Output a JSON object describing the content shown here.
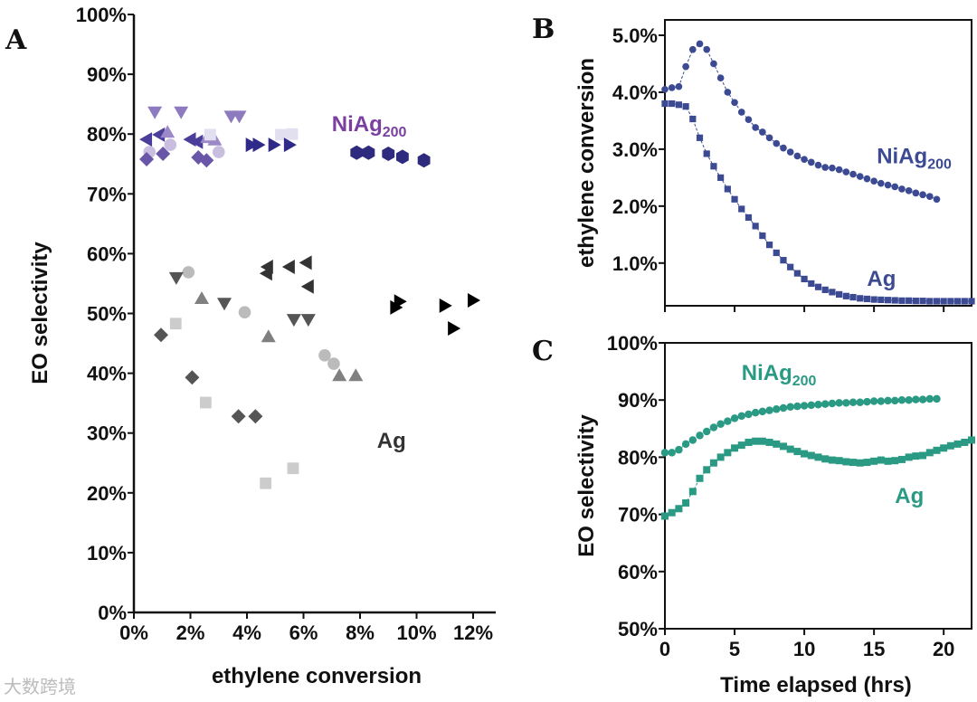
{
  "watermark": "大数跨境",
  "chart_data": [
    {
      "panel": "A",
      "type": "scatter",
      "xlabel": "ethylene conversion",
      "ylabel": "EO selectivity",
      "xlim": [
        0,
        12.8
      ],
      "ylim": [
        0,
        100
      ],
      "xticks": [
        0,
        2,
        4,
        6,
        8,
        10,
        12
      ],
      "xtick_labels": [
        "0%",
        "2%",
        "4%",
        "6%",
        "8%",
        "10%",
        "12%"
      ],
      "yticks": [
        0,
        10,
        20,
        30,
        40,
        50,
        60,
        70,
        80,
        90,
        100
      ],
      "ytick_labels": [
        "0%",
        "10%",
        "20%",
        "30%",
        "40%",
        "50%",
        "60%",
        "70%",
        "80%",
        "90%",
        "100%"
      ],
      "annotations": [
        {
          "text": "NiAg",
          "sub": "200",
          "x": 7.0,
          "y": 80.5,
          "color": "#7b3fa0"
        },
        {
          "text": "Ag",
          "x": 8.6,
          "y": 27.5,
          "color": "#333333"
        }
      ],
      "series": [
        {
          "name": "NiAg down-triangle",
          "group": "NiAg200",
          "marker": "tri-down",
          "color": "#8e7bbf",
          "x": [
            0.74,
            1.67,
            3.44,
            3.73
          ],
          "y": [
            83.7,
            83.7,
            83.0,
            83.0
          ]
        },
        {
          "name": "NiAg left-triangle",
          "group": "NiAg200",
          "marker": "tri-left",
          "color": "#4b3e9a",
          "x": [
            0.45,
            0.9,
            2.0,
            2.25
          ],
          "y": [
            79.1,
            79.9,
            79.1,
            78.7
          ]
        },
        {
          "name": "NiAg up-triangle",
          "group": "NiAg200",
          "marker": "tri-up",
          "color": "#9a88c8",
          "x": [
            1.19,
            2.6,
            2.86
          ],
          "y": [
            80.3,
            79.4,
            79.0
          ]
        },
        {
          "name": "NiAg circle",
          "group": "NiAg200",
          "marker": "circle",
          "color": "#c9bde0",
          "x": [
            0.55,
            1.29,
            3.0
          ],
          "y": [
            77.0,
            78.2,
            77.0
          ]
        },
        {
          "name": "NiAg square",
          "group": "NiAg200",
          "marker": "square",
          "color": "#e2dff0",
          "x": [
            2.7,
            5.2,
            5.6
          ],
          "y": [
            79.9,
            79.9,
            80.0
          ]
        },
        {
          "name": "NiAg right-triangle",
          "group": "NiAg200",
          "marker": "tri-right",
          "color": "#2f2a8a",
          "x": [
            4.15,
            4.4,
            4.95,
            5.5
          ],
          "y": [
            78.2,
            78.2,
            78.2,
            78.2
          ]
        },
        {
          "name": "NiAg diamond",
          "group": "NiAg200",
          "marker": "diamond",
          "color": "#6a56a8",
          "x": [
            0.45,
            1.03,
            2.28,
            2.57
          ],
          "y": [
            75.8,
            76.7,
            76.1,
            75.6
          ]
        },
        {
          "name": "NiAg hexagon",
          "group": "NiAg200",
          "marker": "hexagon",
          "color": "#2e2a7e",
          "x": [
            7.88,
            8.3,
            9.0,
            9.5,
            10.26
          ],
          "y": [
            76.9,
            76.9,
            76.7,
            76.2,
            75.6
          ]
        },
        {
          "name": "Ag diamond",
          "group": "Ag",
          "marker": "diamond",
          "color": "#555555",
          "x": [
            0.96,
            2.06,
            3.7,
            4.3
          ],
          "y": [
            46.4,
            39.3,
            32.8,
            32.8
          ]
        },
        {
          "name": "Ag square",
          "group": "Ag",
          "marker": "square",
          "color": "#cccccc",
          "x": [
            1.48,
            2.54,
            4.66,
            5.63
          ],
          "y": [
            48.3,
            35.1,
            21.6,
            24.1
          ]
        },
        {
          "name": "Ag circle",
          "group": "Ag",
          "marker": "circle",
          "color": "#bbbbbb",
          "x": [
            1.93,
            3.92,
            6.75,
            7.07
          ],
          "y": [
            56.9,
            50.2,
            43.0,
            41.6
          ]
        },
        {
          "name": "Ag down-triangle",
          "group": "Ag",
          "marker": "tri-down",
          "color": "#555555",
          "x": [
            1.5,
            3.2,
            5.66,
            6.17
          ],
          "y": [
            56.0,
            51.7,
            49.0,
            49.0
          ]
        },
        {
          "name": "Ag up-triangle",
          "group": "Ag",
          "marker": "tri-up",
          "color": "#808080",
          "x": [
            2.4,
            4.76,
            7.27,
            7.85
          ],
          "y": [
            52.5,
            46.1,
            39.6,
            39.6
          ]
        },
        {
          "name": "Ag left-triangle",
          "group": "Ag",
          "marker": "tri-left",
          "color": "#333333",
          "x": [
            4.73,
            4.7,
            5.5,
            6.1,
            6.17
          ],
          "y": [
            57.8,
            56.7,
            57.8,
            58.5,
            54.5
          ]
        },
        {
          "name": "Ag right-triangle",
          "group": "Ag",
          "marker": "tri-right",
          "color": "#000000",
          "x": [
            9.4,
            9.26,
            11.0,
            12.0,
            11.3
          ],
          "y": [
            52.0,
            51.0,
            51.3,
            52.2,
            47.5
          ]
        }
      ]
    },
    {
      "panel": "B",
      "type": "line",
      "xlabel": "",
      "ylabel": "ethylene conversion",
      "xlim": [
        0,
        22
      ],
      "ylim": [
        0.25,
        5.27
      ],
      "xticks": [
        0,
        5,
        10,
        15,
        20
      ],
      "yticks": [
        1,
        2,
        3,
        4,
        5
      ],
      "ytick_labels": [
        "1.0%",
        "2.0%",
        "3.0%",
        "4.0%",
        "5.0%"
      ],
      "annotations": [
        {
          "text": "NiAg",
          "sub": "200",
          "x": 15.2,
          "y": 2.75,
          "color": "#3b4a92"
        },
        {
          "text": "Ag",
          "x": 14.5,
          "y": 0.6,
          "color": "#3b4a92"
        }
      ],
      "series": [
        {
          "name": "NiAg200",
          "marker": "circle",
          "color": "#3b4a92",
          "x": [
            0,
            0.5,
            1,
            1.5,
            2,
            2.5,
            3,
            3.5,
            4,
            4.5,
            5,
            5.5,
            6,
            6.5,
            7,
            7.5,
            8,
            8.5,
            9,
            9.5,
            10,
            10.5,
            11,
            11.5,
            12,
            12.5,
            13,
            13.5,
            14,
            14.5,
            15,
            15.5,
            16,
            16.5,
            17,
            17.5,
            18,
            18.5,
            19,
            19.5
          ],
          "y": [
            4.05,
            4.08,
            4.1,
            4.45,
            4.75,
            4.85,
            4.75,
            4.5,
            4.25,
            4.0,
            3.82,
            3.65,
            3.52,
            3.38,
            3.3,
            3.2,
            3.1,
            3.02,
            2.95,
            2.88,
            2.82,
            2.77,
            2.72,
            2.68,
            2.67,
            2.64,
            2.6,
            2.56,
            2.52,
            2.48,
            2.44,
            2.4,
            2.37,
            2.34,
            2.3,
            2.27,
            2.23,
            2.2,
            2.17,
            2.12
          ]
        },
        {
          "name": "Ag",
          "marker": "square",
          "color": "#3b4a92",
          "x": [
            0,
            0.5,
            1,
            1.5,
            2,
            2.5,
            3,
            3.5,
            4,
            4.5,
            5,
            5.5,
            6,
            6.5,
            7,
            7.5,
            8,
            8.5,
            9,
            9.5,
            10,
            10.5,
            11,
            11.5,
            12,
            12.5,
            13,
            13.5,
            14,
            14.5,
            15,
            15.5,
            16,
            16.5,
            17,
            17.5,
            18,
            18.5,
            19,
            19.5,
            20,
            20.5,
            21,
            21.5,
            22
          ],
          "y": [
            3.8,
            3.8,
            3.78,
            3.75,
            3.53,
            3.2,
            2.92,
            2.7,
            2.5,
            2.3,
            2.12,
            1.95,
            1.8,
            1.65,
            1.48,
            1.32,
            1.18,
            1.05,
            0.93,
            0.82,
            0.72,
            0.64,
            0.58,
            0.53,
            0.49,
            0.45,
            0.42,
            0.4,
            0.38,
            0.37,
            0.36,
            0.355,
            0.35,
            0.345,
            0.34,
            0.34,
            0.335,
            0.335,
            0.33,
            0.33,
            0.33,
            0.33,
            0.33,
            0.33,
            0.33
          ]
        }
      ]
    },
    {
      "panel": "C",
      "type": "line",
      "xlabel": "Time elapsed (hrs)",
      "ylabel": "EO selectivity",
      "xlim": [
        0,
        22
      ],
      "ylim": [
        50,
        100
      ],
      "xticks": [
        0,
        5,
        10,
        15,
        20
      ],
      "xtick_labels": [
        "0",
        "5",
        "10",
        "15",
        "20"
      ],
      "yticks": [
        50,
        60,
        70,
        80,
        90,
        100
      ],
      "ytick_labels": [
        "50%",
        "60%",
        "70%",
        "80%",
        "90%",
        "100%"
      ],
      "annotations": [
        {
          "text": "NiAg",
          "sub": "200",
          "x": 5.5,
          "y": 93.5,
          "color": "#2a9a84"
        },
        {
          "text": "Ag",
          "x": 16.5,
          "y": 72.0,
          "color": "#2a9a84"
        }
      ],
      "series": [
        {
          "name": "NiAg200",
          "marker": "circle",
          "color": "#2a9a84",
          "x": [
            0,
            0.5,
            1,
            1.5,
            2,
            2.5,
            3,
            3.5,
            4,
            4.5,
            5,
            5.5,
            6,
            6.5,
            7,
            7.5,
            8,
            8.5,
            9,
            9.5,
            10,
            10.5,
            11,
            11.5,
            12,
            12.5,
            13,
            13.5,
            14,
            14.5,
            15,
            15.5,
            16,
            16.5,
            17,
            17.5,
            18,
            18.5,
            19,
            19.5
          ],
          "y": [
            80.8,
            80.8,
            81.3,
            82.3,
            83.0,
            83.8,
            84.5,
            85.2,
            85.8,
            86.3,
            86.8,
            87.2,
            87.5,
            87.8,
            88.0,
            88.2,
            88.4,
            88.6,
            88.8,
            88.9,
            89.0,
            89.1,
            89.2,
            89.3,
            89.4,
            89.5,
            89.5,
            89.6,
            89.6,
            89.7,
            89.8,
            89.8,
            89.9,
            89.9,
            90.0,
            90.0,
            90.1,
            90.1,
            90.2,
            90.2
          ]
        },
        {
          "name": "Ag",
          "marker": "square",
          "color": "#2a9a84",
          "x": [
            0,
            0.5,
            1,
            1.5,
            2,
            2.5,
            3,
            3.5,
            4,
            4.5,
            5,
            5.5,
            6,
            6.5,
            7,
            7.5,
            8,
            8.5,
            9,
            9.5,
            10,
            10.5,
            11,
            11.5,
            12,
            12.5,
            13,
            13.5,
            14,
            14.5,
            15,
            15.5,
            16,
            16.5,
            17,
            17.5,
            18,
            18.5,
            19,
            19.5,
            20,
            20.5,
            21,
            21.5,
            22
          ],
          "y": [
            69.7,
            70.3,
            71.0,
            72.0,
            74.0,
            76.3,
            77.8,
            79.0,
            80.0,
            80.8,
            81.6,
            82.1,
            82.6,
            82.8,
            82.8,
            82.6,
            82.3,
            81.9,
            81.4,
            81.0,
            80.6,
            80.3,
            80.0,
            79.7,
            79.5,
            79.4,
            79.2,
            79.1,
            79.0,
            79.1,
            79.3,
            79.5,
            79.3,
            79.4,
            79.6,
            80.0,
            80.2,
            80.3,
            80.8,
            81.2,
            81.6,
            82.0,
            82.3,
            82.6,
            83.0
          ]
        }
      ]
    }
  ],
  "panel_labels": [
    "A",
    "B",
    "C"
  ]
}
